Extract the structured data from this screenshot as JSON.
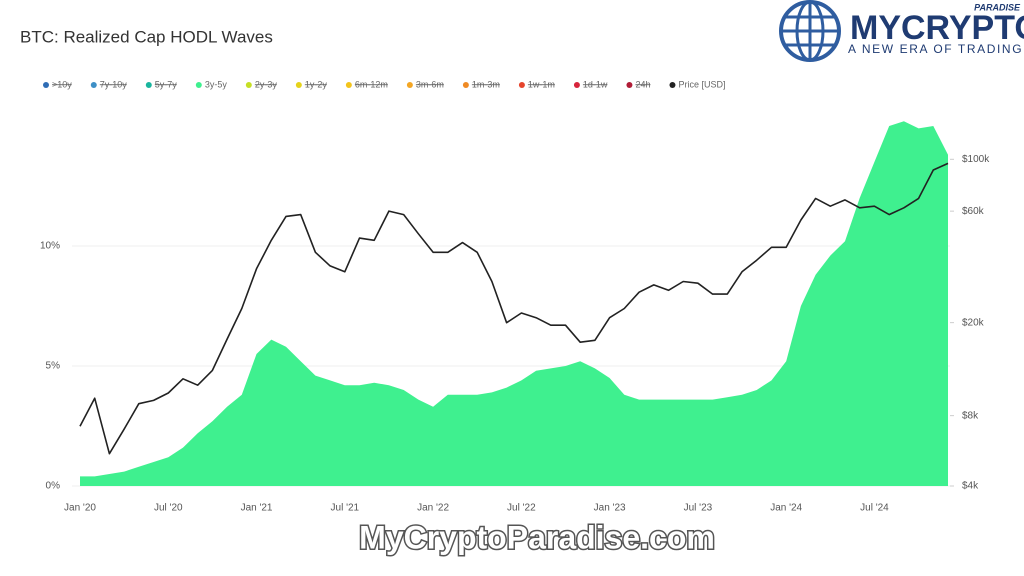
{
  "chart_data": {
    "type": "area",
    "title": "BTC: Realized Cap HODL Waves",
    "categories": [
      "Jan '20",
      null,
      null,
      null,
      null,
      null,
      "Jul '20",
      null,
      null,
      null,
      null,
      null,
      "Jan '21",
      null,
      null,
      null,
      null,
      null,
      "Jul '21",
      null,
      null,
      null,
      null,
      null,
      "Jan '22",
      null,
      null,
      null,
      null,
      null,
      "Jul '22",
      null,
      null,
      null,
      null,
      null,
      "Jan '23",
      null,
      null,
      null,
      null,
      null,
      "Jul '23",
      null,
      null,
      null,
      null,
      null,
      "Jan '24",
      null,
      null,
      null,
      null,
      null,
      "Jul '24",
      null,
      null,
      null,
      null,
      null
    ],
    "series": [
      {
        "name": ">10y",
        "color": "#2f6db5",
        "visible": false
      },
      {
        "name": "7y-10y",
        "color": "#3d8fc6",
        "visible": false
      },
      {
        "name": "5y-7y",
        "color": "#19b59e",
        "visible": false
      },
      {
        "name": "3y-5y",
        "color": "#3ff08f",
        "visible": true,
        "type": "area",
        "values": [
          0.4,
          0.4,
          0.5,
          0.6,
          0.8,
          1.0,
          1.2,
          1.6,
          2.2,
          2.7,
          3.3,
          3.8,
          5.5,
          6.1,
          5.8,
          5.2,
          4.6,
          4.4,
          4.2,
          4.2,
          4.3,
          4.2,
          4.0,
          3.6,
          3.3,
          3.8,
          3.8,
          3.8,
          3.9,
          4.1,
          4.4,
          4.8,
          4.9,
          5.0,
          5.2,
          4.9,
          4.5,
          3.8,
          3.6,
          3.6,
          3.6,
          3.6,
          3.6,
          3.6,
          3.7,
          3.8,
          4.0,
          4.4,
          5.2,
          7.5,
          8.8,
          9.6,
          10.2,
          12.0,
          13.5,
          15.0,
          15.2,
          14.9,
          15.0,
          13.8
        ]
      },
      {
        "name": "2y-3y",
        "color": "#c6df24",
        "visible": false
      },
      {
        "name": "1y-2y",
        "color": "#e6d31a",
        "visible": false
      },
      {
        "name": "6m-12m",
        "color": "#f3c41b",
        "visible": false
      },
      {
        "name": "3m-6m",
        "color": "#f4a624",
        "visible": false
      },
      {
        "name": "1m-3m",
        "color": "#ef8a25",
        "visible": false
      },
      {
        "name": "1w-1m",
        "color": "#e6452c",
        "visible": false
      },
      {
        "name": "1d-1w",
        "color": "#d7243b",
        "visible": false
      },
      {
        "name": "24h",
        "color": "#b01c37",
        "visible": false
      },
      {
        "name": "Price [USD]",
        "color": "#222222",
        "visible": true,
        "type": "line",
        "axis": "y2",
        "values": [
          7200,
          9500,
          5500,
          7000,
          9000,
          9300,
          10000,
          11500,
          10800,
          12500,
          17000,
          23000,
          34000,
          45000,
          57000,
          58000,
          40000,
          35000,
          33000,
          46000,
          45000,
          60000,
          58000,
          48000,
          40000,
          40000,
          44000,
          40000,
          30000,
          20000,
          22000,
          21000,
          19500,
          19500,
          16500,
          16800,
          21000,
          23000,
          27000,
          29000,
          27500,
          30000,
          29500,
          26500,
          26500,
          33000,
          37000,
          42000,
          42000,
          55000,
          68000,
          63000,
          67000,
          62000,
          63000,
          58000,
          62000,
          68000,
          90000,
          96000
        ]
      }
    ],
    "ylim": [
      0,
      15.6
    ],
    "yticks": [
      {
        "value": 0,
        "label": "0%"
      },
      {
        "value": 5,
        "label": "5%"
      },
      {
        "value": 10,
        "label": "10%"
      }
    ],
    "y2lim": [
      4000,
      160000
    ],
    "y2scale": "log",
    "y2ticks": [
      {
        "value": 4000,
        "label": "$4k"
      },
      {
        "value": 8000,
        "label": "$8k"
      },
      {
        "value": 20000,
        "label": "$20k"
      },
      {
        "value": 60000,
        "label": "$60k"
      },
      {
        "value": 100000,
        "label": "$100k"
      }
    ],
    "grid": true,
    "legend": "top"
  },
  "logo": {
    "name": "MYCRYPTO",
    "sub": "PARADISE",
    "tagline": "A NEW ERA OF TRADING"
  },
  "watermark": "MyCryptoParadise.com"
}
